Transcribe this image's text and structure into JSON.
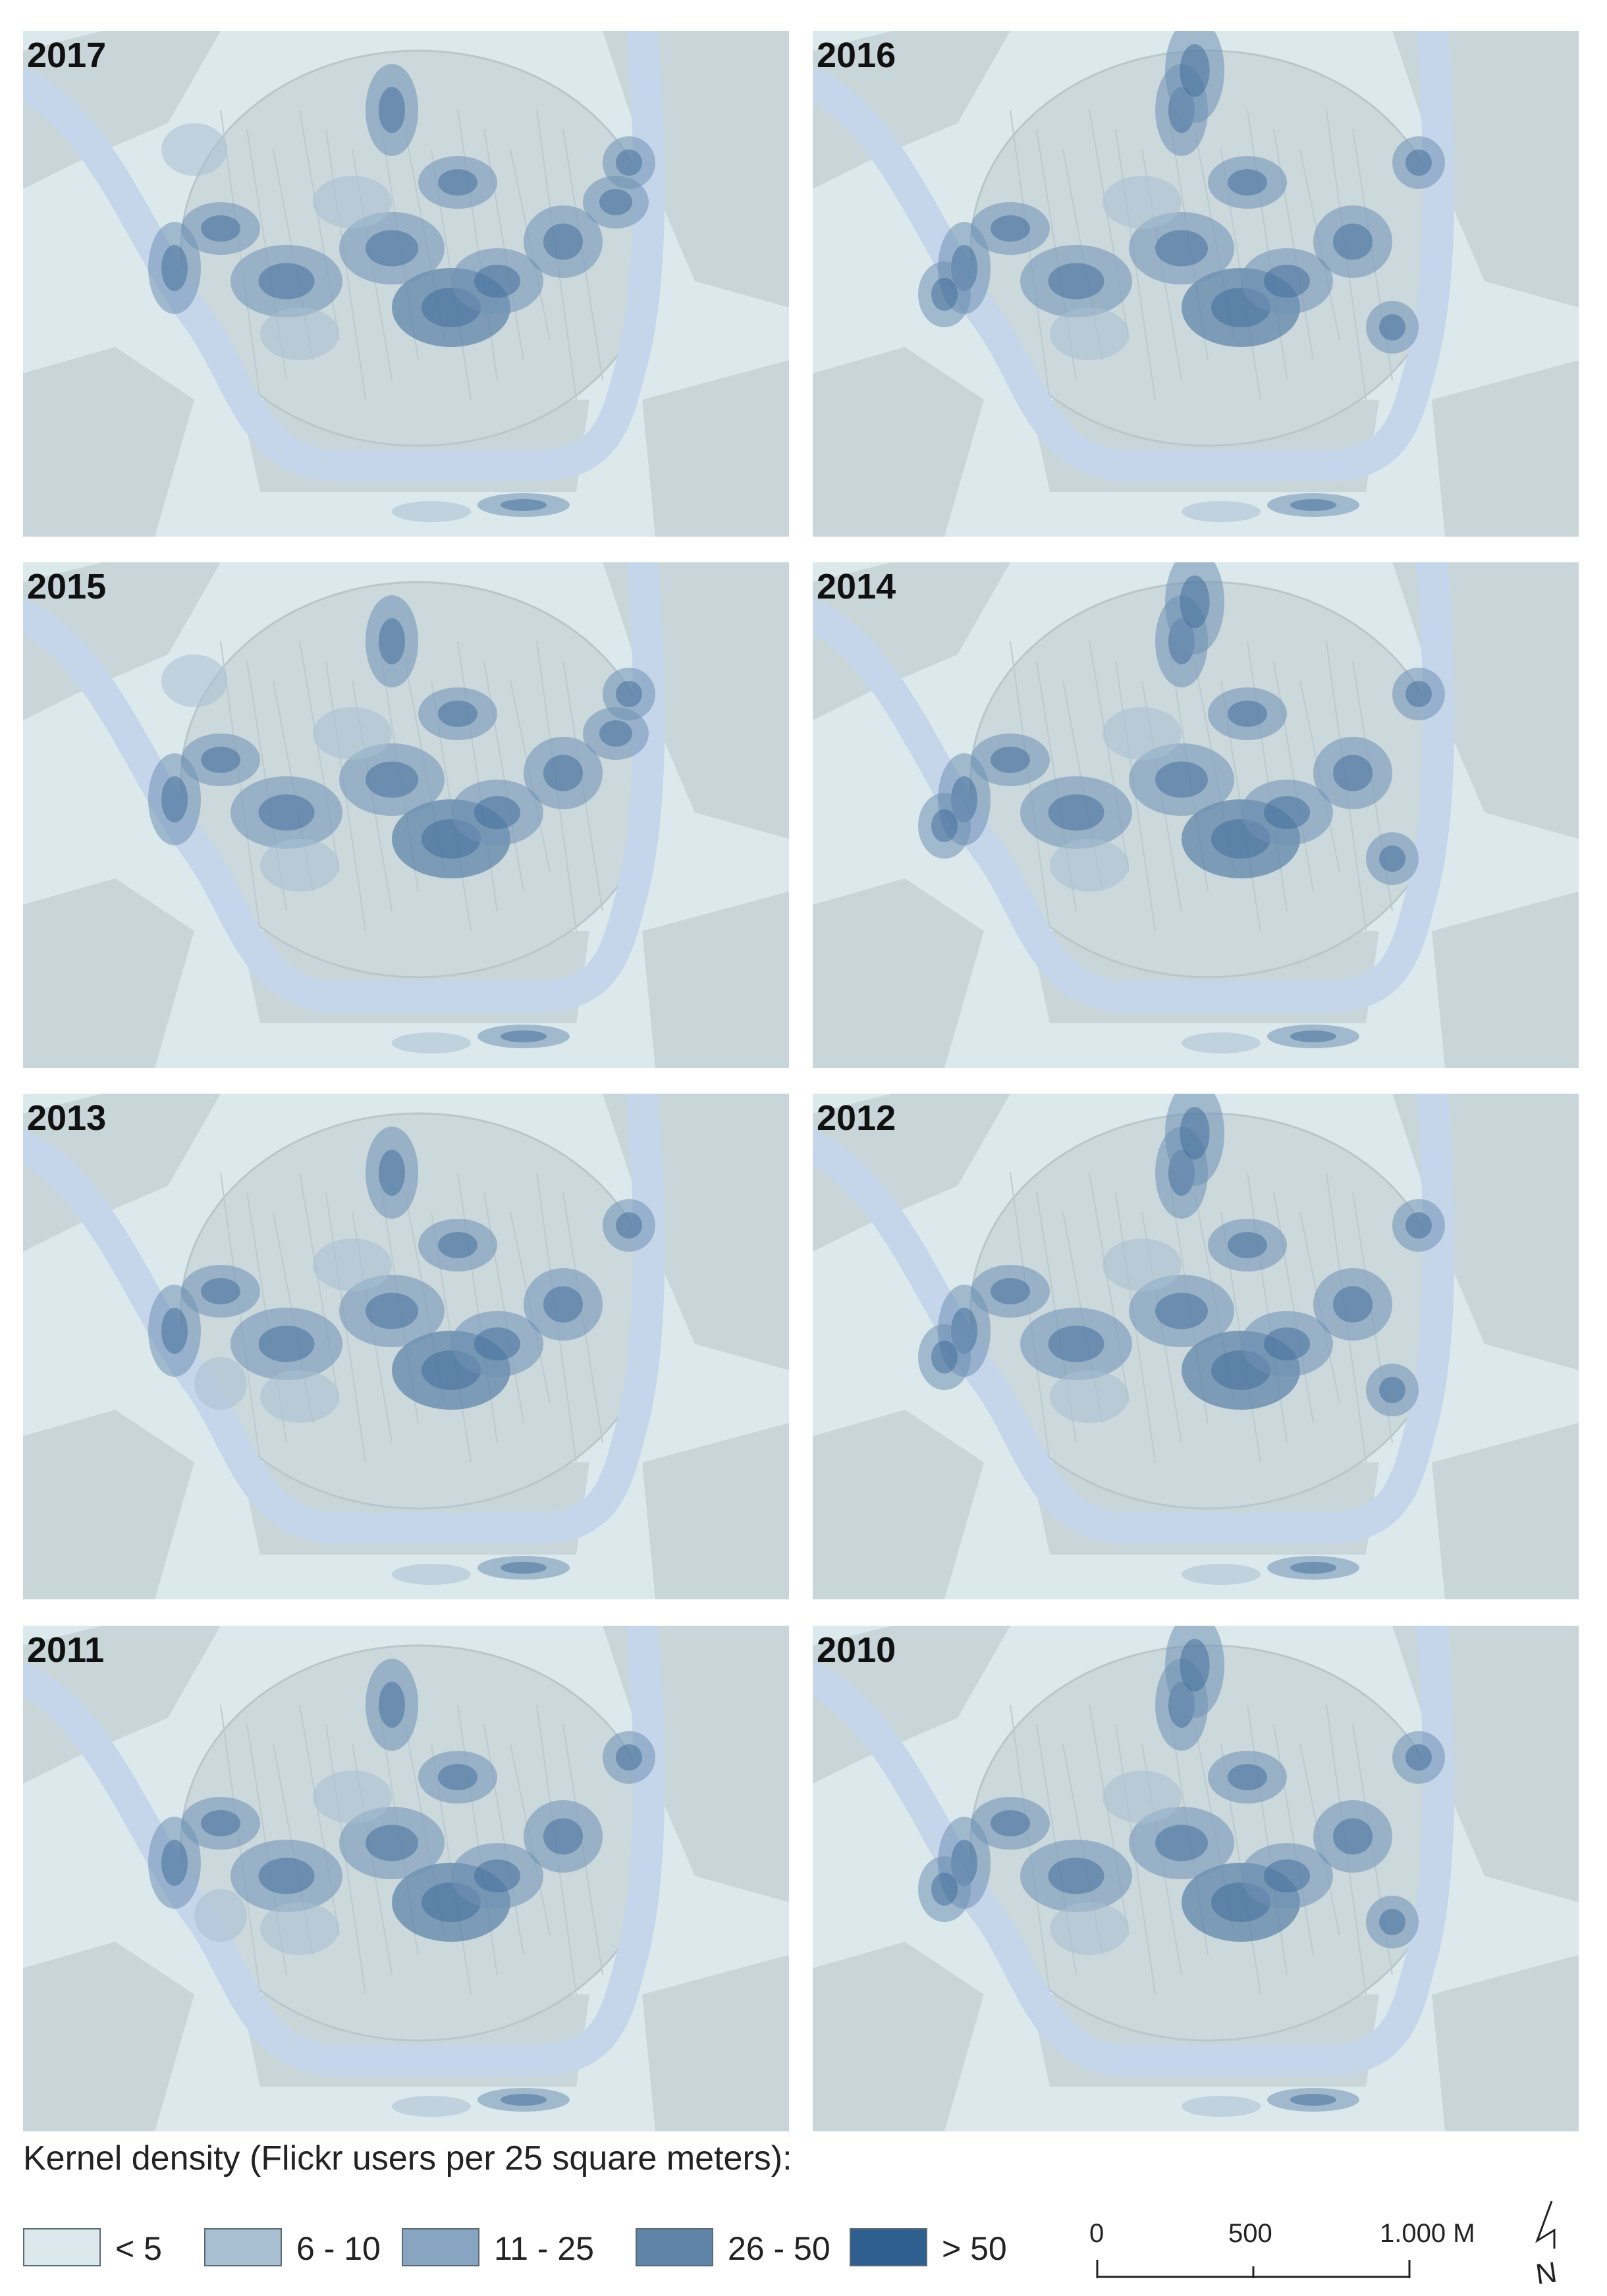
{
  "panels": [
    {
      "year": "2017",
      "blobs": "a"
    },
    {
      "year": "2016",
      "blobs": "b"
    },
    {
      "year": "2015",
      "blobs": "a"
    },
    {
      "year": "2014",
      "blobs": "b"
    },
    {
      "year": "2013",
      "blobs": "c"
    },
    {
      "year": "2012",
      "blobs": "b"
    },
    {
      "year": "2011",
      "blobs": "c"
    },
    {
      "year": "2010",
      "blobs": "b"
    }
  ],
  "legend": {
    "title": "Kernel density (Flickr users per 25 square meters):",
    "classes": [
      {
        "label": "< 5",
        "color": "#dce9ec"
      },
      {
        "label": "6 - 10",
        "color": "#a9bfd2"
      },
      {
        "label": "11 - 25",
        "color": "#87a5c0"
      },
      {
        "label": "26 - 50",
        "color": "#5f84a8"
      },
      {
        "label": "> 50",
        "color": "#2f5f8f"
      }
    ]
  },
  "scale": {
    "ticks": [
      "0",
      "500",
      "1.000 M"
    ]
  },
  "north_label": "N",
  "colors": {
    "land": "#c9d6d9",
    "background": "#dce9ec",
    "river": "#c6d6ea",
    "density_mid": "#6f92b5",
    "density_high": "#3d6a98"
  }
}
